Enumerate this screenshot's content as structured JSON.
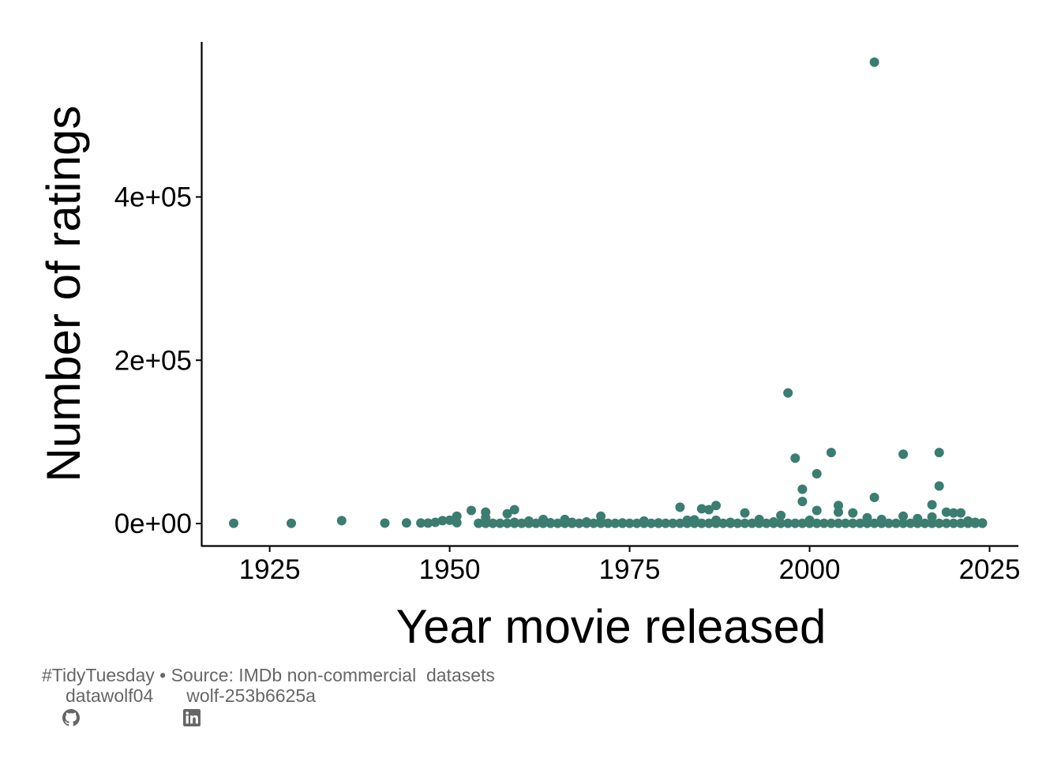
{
  "chart_data": {
    "type": "scatter",
    "xlabel": "Year movie released",
    "ylabel": "Number of ratings",
    "xlim": [
      1915.5,
      2029
    ],
    "ylim": [
      -28000,
      590000
    ],
    "x_ticks": [
      1925,
      1950,
      1975,
      2000,
      2025
    ],
    "x_tick_labels": [
      "1925",
      "1950",
      "1975",
      "2000",
      "2025"
    ],
    "y_ticks": [
      0,
      200000,
      400000
    ],
    "y_tick_labels": [
      "0e+00",
      "2e+05",
      "4e+05"
    ],
    "grid": false,
    "legend": "none",
    "point_color": "#3b7d70",
    "points": [
      [
        1920,
        200
      ],
      [
        1928,
        300
      ],
      [
        1935,
        3500
      ],
      [
        1941,
        500
      ],
      [
        1944,
        800
      ],
      [
        1946,
        600
      ],
      [
        1947,
        500
      ],
      [
        1948,
        1500
      ],
      [
        1949,
        3500
      ],
      [
        1950,
        4000
      ],
      [
        1951,
        9000
      ],
      [
        1951,
        1000
      ],
      [
        1953,
        16000
      ],
      [
        1955,
        14000
      ],
      [
        1955,
        7000
      ],
      [
        1955,
        500
      ],
      [
        1958,
        12000
      ],
      [
        1959,
        17000
      ],
      [
        1959,
        1500
      ],
      [
        1961,
        3000
      ],
      [
        1963,
        5000
      ],
      [
        1964,
        1000
      ],
      [
        1966,
        5000
      ],
      [
        1967,
        1500
      ],
      [
        1969,
        2000
      ],
      [
        1971,
        9000
      ],
      [
        1971,
        2500
      ],
      [
        1974,
        800
      ],
      [
        1977,
        3000
      ],
      [
        1979,
        800
      ],
      [
        1982,
        20000
      ],
      [
        1983,
        4000
      ],
      [
        1984,
        4500
      ],
      [
        1985,
        18000
      ],
      [
        1986,
        17000
      ],
      [
        1987,
        22000
      ],
      [
        1987,
        4000
      ],
      [
        1989,
        1500
      ],
      [
        1991,
        13000
      ],
      [
        1993,
        5000
      ],
      [
        1995,
        2000
      ],
      [
        1996,
        10000
      ],
      [
        1997,
        160000
      ],
      [
        1998,
        80000
      ],
      [
        1999,
        42000
      ],
      [
        1999,
        27000
      ],
      [
        2000,
        4000
      ],
      [
        2001,
        61000
      ],
      [
        2001,
        16000
      ],
      [
        2003,
        87000
      ],
      [
        2004,
        22000
      ],
      [
        2004,
        14000
      ],
      [
        2006,
        13000
      ],
      [
        2008,
        7000
      ],
      [
        2009,
        565000
      ],
      [
        2009,
        32000
      ],
      [
        2010,
        5000
      ],
      [
        2013,
        85000
      ],
      [
        2013,
        9000
      ],
      [
        2015,
        6000
      ],
      [
        2017,
        23000
      ],
      [
        2017,
        8000
      ],
      [
        2018,
        87000
      ],
      [
        2018,
        46000
      ],
      [
        2019,
        14000
      ],
      [
        2020,
        13000
      ],
      [
        2021,
        13000
      ],
      [
        2022,
        3000
      ],
      [
        2023,
        1500
      ],
      [
        2024,
        800
      ]
    ],
    "baseline_points": {
      "from": 1954,
      "to": 2024,
      "step": 1,
      "value": 300
    }
  },
  "caption": {
    "line1": "#TidyTuesday • Source: IMDb non-commercial  datasets",
    "github_icon": "github-icon",
    "github_user": "datawolf04",
    "linkedin_icon": "linkedin-icon",
    "linkedin_user": "wolf-253b6625a"
  }
}
